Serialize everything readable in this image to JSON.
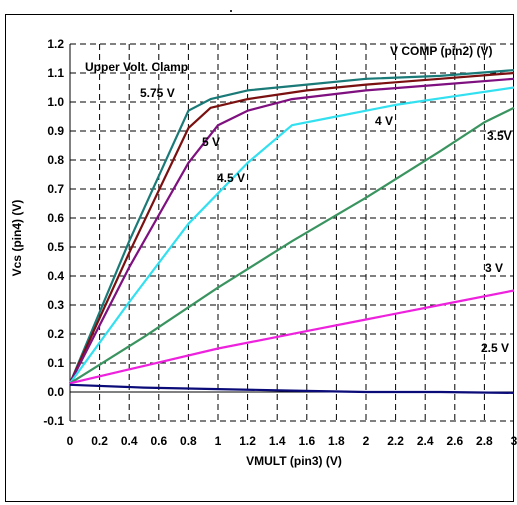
{
  "chart_data": {
    "type": "line",
    "title": "",
    "xlabel": "VMULT (pin3) (V)",
    "ylabel": "Vcs (pin4) (V)",
    "xlim": [
      0,
      3
    ],
    "ylim": [
      -0.1,
      1.2
    ],
    "x_ticks": [
      "0",
      "0.2",
      "0.4",
      "0.6",
      "0.8",
      "1",
      "1.2",
      "1.4",
      "1.6",
      "1.8",
      "2",
      "2.2",
      "2.4",
      "2.6",
      "2.8",
      "3"
    ],
    "y_ticks": [
      "-0.1",
      "0.0",
      "0.1",
      "0.2",
      "0.3",
      "0.4",
      "0.5",
      "0.6",
      "0.7",
      "0.8",
      "0.9",
      "1.0",
      "1.1",
      "1.2"
    ],
    "grid": true,
    "legend": "none",
    "annotations": [
      "Upper Volt. Clamp",
      "V COMP (pin2) (V)"
    ],
    "series": [
      {
        "name": "5.75 V",
        "color": "#1a7a78",
        "points": [
          [
            0,
            0.03
          ],
          [
            0.4,
            0.52
          ],
          [
            0.8,
            0.97
          ],
          [
            0.95,
            1.01
          ],
          [
            1.2,
            1.04
          ],
          [
            1.6,
            1.06
          ],
          [
            2.0,
            1.08
          ],
          [
            2.5,
            1.09
          ],
          [
            3.0,
            1.11
          ]
        ]
      },
      {
        "name": "5 V",
        "color": "#7a1010",
        "points": [
          [
            0,
            0.03
          ],
          [
            0.4,
            0.48
          ],
          [
            0.8,
            0.91
          ],
          [
            0.95,
            0.98
          ],
          [
            1.2,
            1.01
          ],
          [
            1.6,
            1.04
          ],
          [
            2.0,
            1.06
          ],
          [
            2.5,
            1.08
          ],
          [
            3.0,
            1.1
          ]
        ]
      },
      {
        "name": "4.5 V",
        "color": "#7f107f",
        "points": [
          [
            0,
            0.03
          ],
          [
            0.4,
            0.43
          ],
          [
            0.8,
            0.79
          ],
          [
            1.0,
            0.92
          ],
          [
            1.2,
            0.97
          ],
          [
            1.5,
            1.01
          ],
          [
            2.0,
            1.04
          ],
          [
            2.5,
            1.06
          ],
          [
            3.0,
            1.08
          ]
        ]
      },
      {
        "name": "4 V",
        "color": "#33e0f0",
        "points": [
          [
            0,
            0.03
          ],
          [
            0.4,
            0.31
          ],
          [
            0.8,
            0.58
          ],
          [
            1.2,
            0.79
          ],
          [
            1.5,
            0.92
          ],
          [
            1.8,
            0.95
          ],
          [
            2.2,
            0.99
          ],
          [
            2.6,
            1.02
          ],
          [
            3.0,
            1.05
          ]
        ]
      },
      {
        "name": "3.5V",
        "color": "#3a9460",
        "points": [
          [
            0,
            0.03
          ],
          [
            0.5,
            0.19
          ],
          [
            1.0,
            0.36
          ],
          [
            1.5,
            0.52
          ],
          [
            2.0,
            0.67
          ],
          [
            2.5,
            0.83
          ],
          [
            2.8,
            0.93
          ],
          [
            3.0,
            0.98
          ]
        ]
      },
      {
        "name": "3 V",
        "color": "#ee22dd",
        "points": [
          [
            0,
            0.03
          ],
          [
            0.5,
            0.09
          ],
          [
            1.0,
            0.15
          ],
          [
            1.6,
            0.21
          ],
          [
            2.0,
            0.25
          ],
          [
            2.5,
            0.3
          ],
          [
            3.0,
            0.35
          ]
        ]
      },
      {
        "name": "2.5 V",
        "color": "#0a0a78",
        "points": [
          [
            0,
            0.025
          ],
          [
            0.5,
            0.015
          ],
          [
            1.0,
            0.01
          ],
          [
            1.5,
            0.005
          ],
          [
            2.0,
            0.0
          ],
          [
            2.5,
            0.0
          ],
          [
            3.0,
            -0.003
          ]
        ]
      }
    ]
  }
}
